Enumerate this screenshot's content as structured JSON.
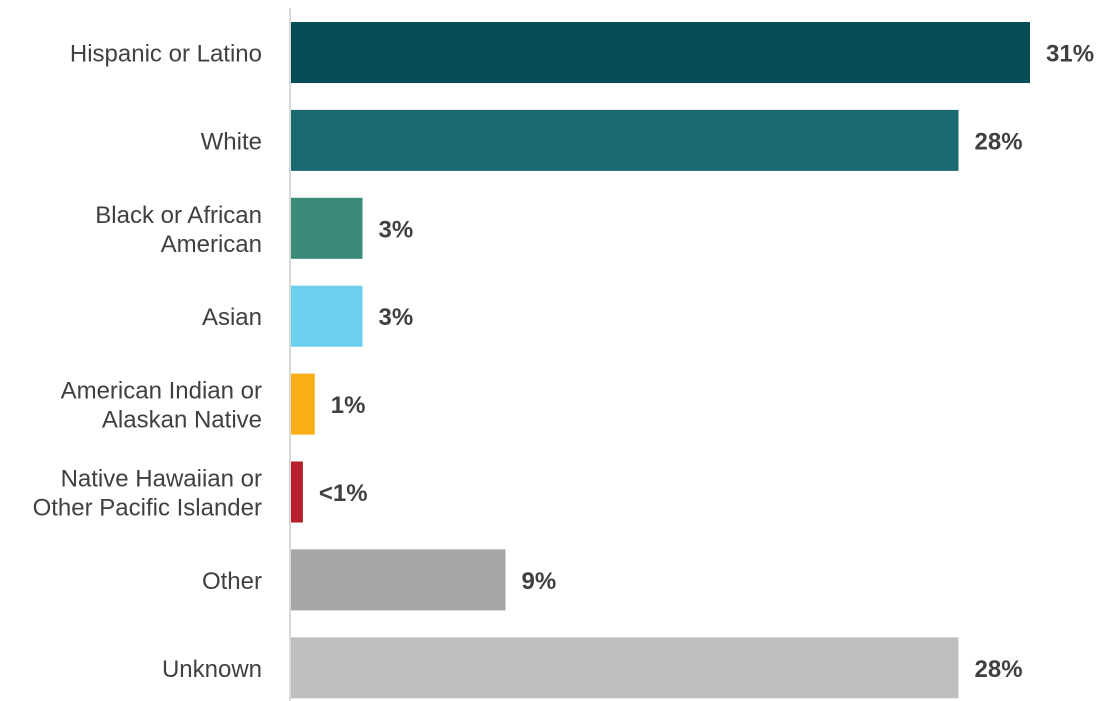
{
  "chart_data": {
    "type": "bar",
    "orientation": "horizontal",
    "categories": [
      [
        "Hispanic or Latino"
      ],
      [
        "White"
      ],
      [
        "Black or African",
        "American"
      ],
      [
        "Asian"
      ],
      [
        "American Indian or",
        "Alaskan Native"
      ],
      [
        "Native Hawaiian or",
        "Other Pacific Islander"
      ],
      [
        "Other"
      ],
      [
        "Unknown"
      ]
    ],
    "values": [
      31,
      28,
      3,
      3,
      1,
      0.5,
      9,
      28
    ],
    "value_labels": [
      "31%",
      "28%",
      "3%",
      "3%",
      "1%",
      "<1%",
      "9%",
      "28%"
    ],
    "colors": [
      "#064d55",
      "#1b6a72",
      "#3a8c79",
      "#6bd0ee",
      "#fbaf17",
      "#b5202a",
      "#a6a6a6",
      "#bfbfbf"
    ],
    "xlim": [
      0,
      31
    ],
    "grid": false,
    "legend": "none"
  }
}
